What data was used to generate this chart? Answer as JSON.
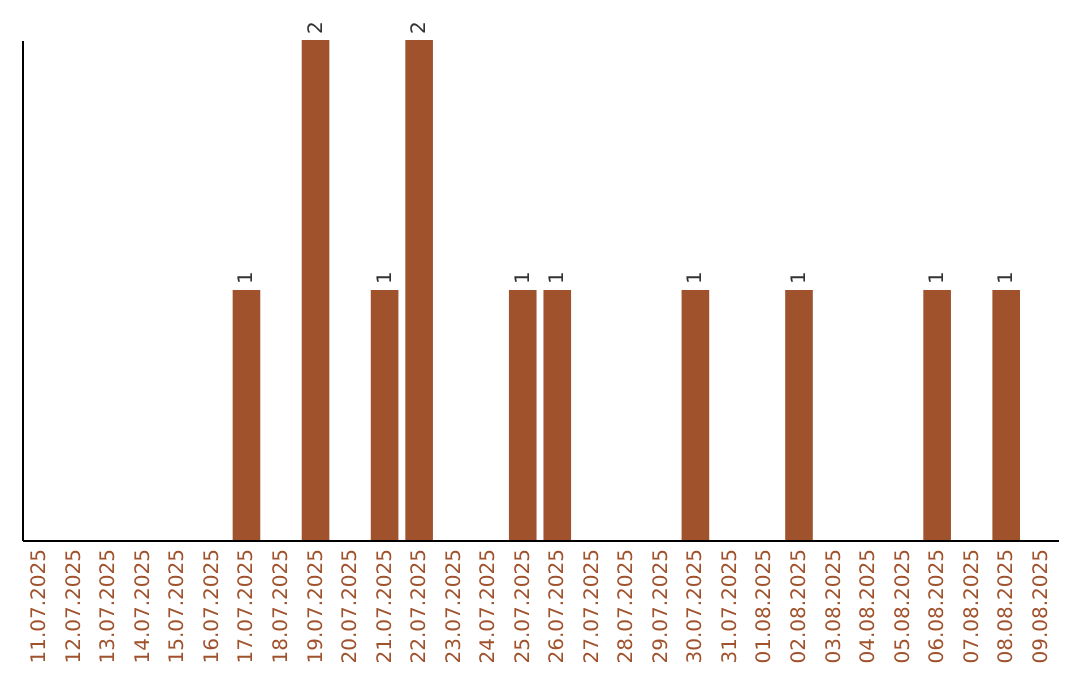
{
  "chart_data": {
    "type": "bar",
    "categories": [
      "11.07.2025",
      "12.07.2025",
      "13.07.2025",
      "14.07.2025",
      "15.07.2025",
      "16.07.2025",
      "17.07.2025",
      "18.07.2025",
      "19.07.2025",
      "20.07.2025",
      "21.07.2025",
      "22.07.2025",
      "23.07.2025",
      "24.07.2025",
      "25.07.2025",
      "26.07.2025",
      "27.07.2025",
      "28.07.2025",
      "29.07.2025",
      "30.07.2025",
      "31.07.2025",
      "01.08.2025",
      "02.08.2025",
      "03.08.2025",
      "04.08.2025",
      "05.08.2025",
      "06.08.2025",
      "07.08.2025",
      "08.08.2025",
      "09.08.2025"
    ],
    "values": [
      0,
      0,
      0,
      0,
      0,
      0,
      1,
      0,
      2,
      0,
      1,
      2,
      0,
      0,
      1,
      1,
      0,
      0,
      0,
      1,
      0,
      0,
      1,
      0,
      0,
      0,
      1,
      0,
      1,
      0
    ],
    "value_labels": [
      null,
      null,
      null,
      null,
      null,
      null,
      "1",
      null,
      "2",
      null,
      "1",
      "2",
      null,
      null,
      "1",
      "1",
      null,
      null,
      null,
      "1",
      null,
      null,
      "1",
      null,
      null,
      null,
      "1",
      null,
      "1",
      null
    ],
    "color": "#a0522d",
    "grid": false
  }
}
